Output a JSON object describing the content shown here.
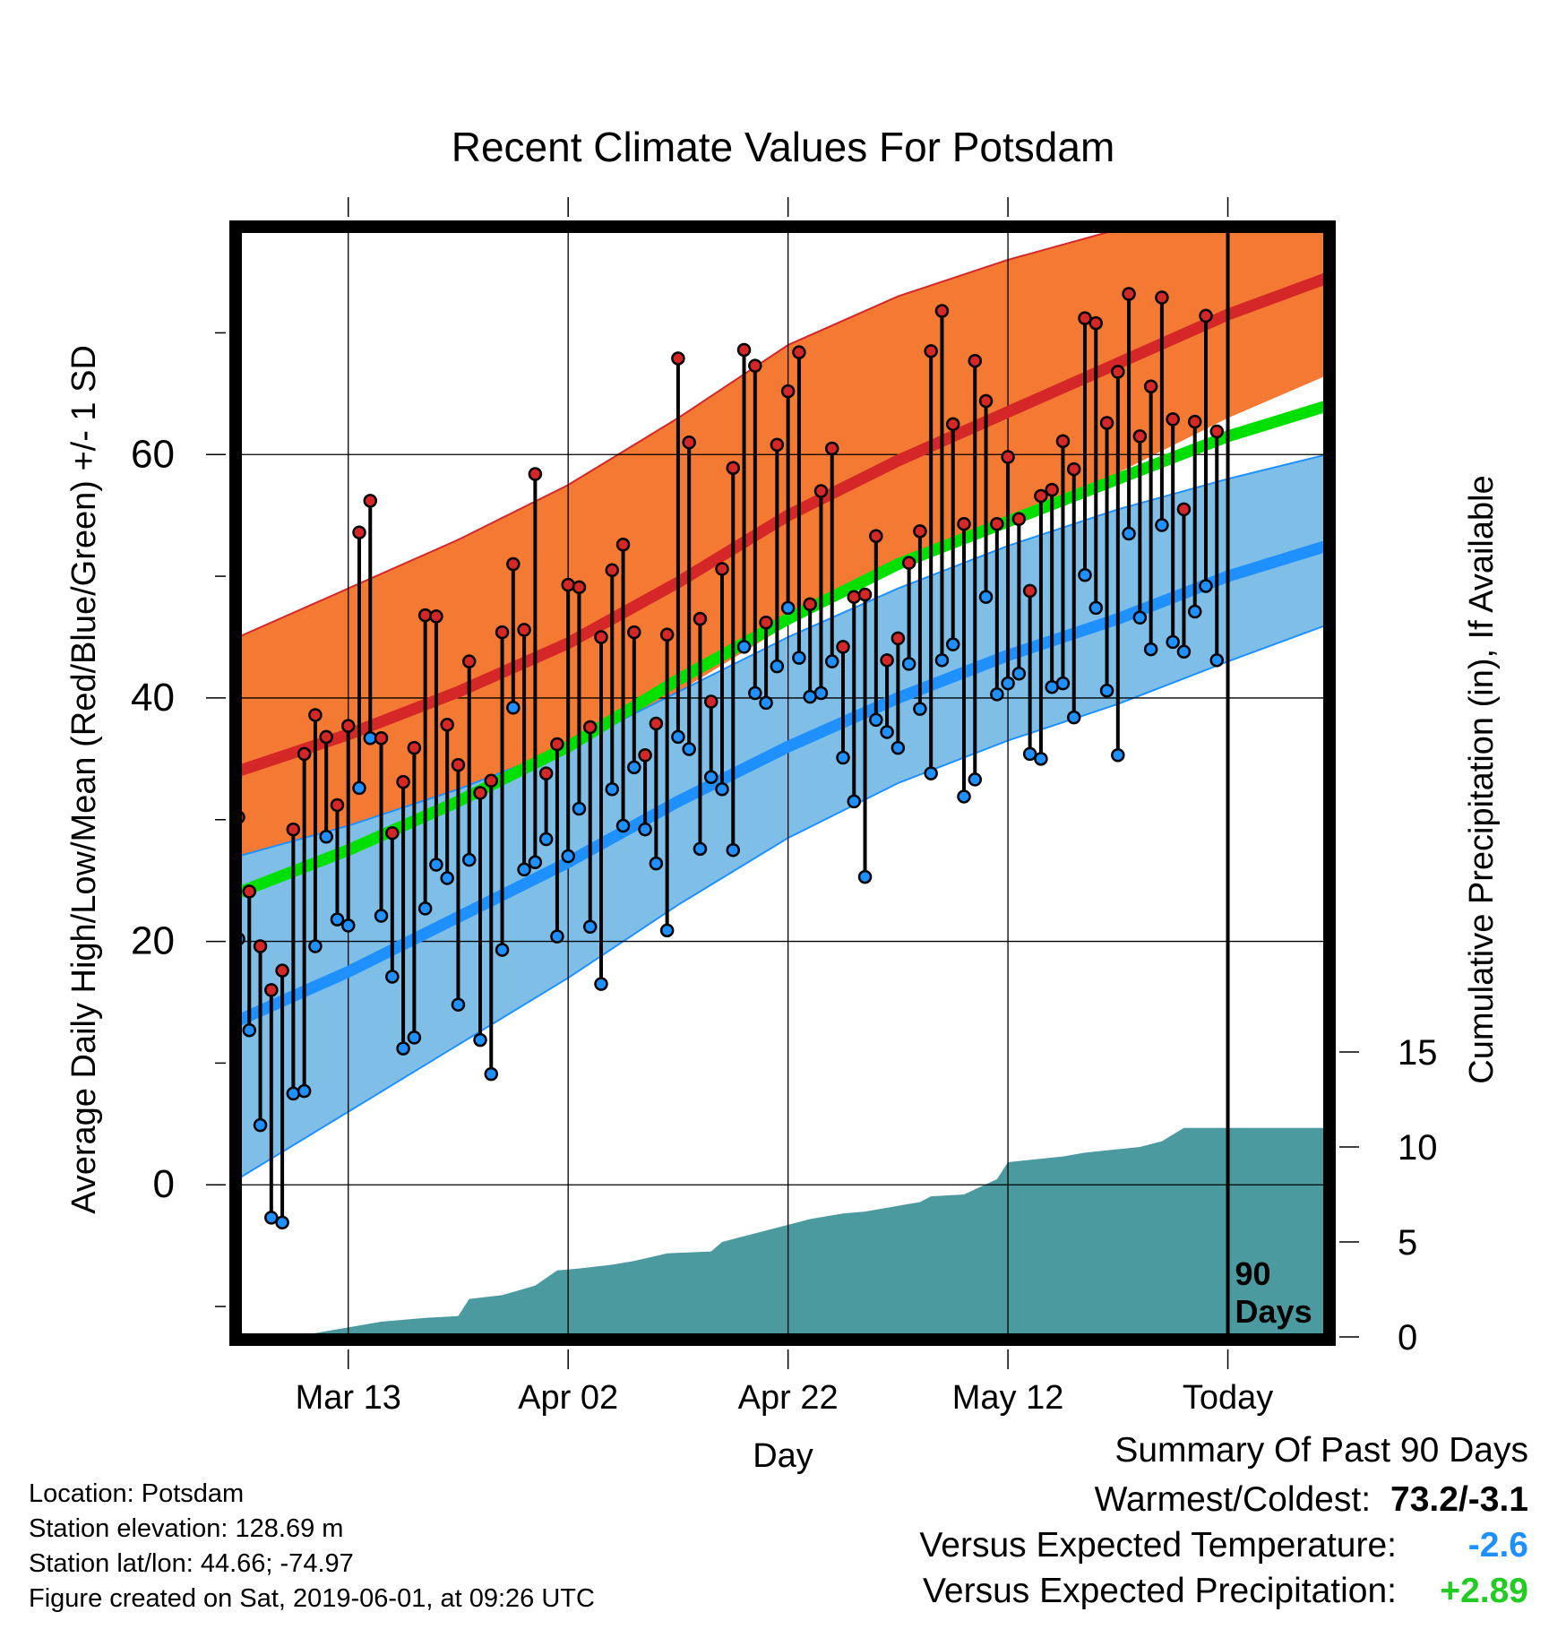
{
  "chart_data": {
    "type": "line",
    "title": "Recent Climate Values For Potsdam",
    "xlabel": "Day",
    "ylabel": "Average Daily High/Low/Mean (Red/Blue/Green) +/- 1 SD",
    "y2label": "Cumulative Precipitation (in), If Available",
    "x_ticks": [
      "Mar 13",
      "Apr 02",
      "Apr 22",
      "May 12",
      "Today"
    ],
    "y_ticks": [
      0,
      20,
      40,
      60
    ],
    "y2_ticks": [
      0,
      5,
      10,
      15
    ],
    "ylim": [
      -12.5,
      78.5
    ],
    "y2lim": [
      0,
      58.3
    ],
    "xlim_days_from_today": [
      -90,
      9
    ],
    "today_marker": {
      "label_line1": "90",
      "label_line2": "Days"
    },
    "grid": true,
    "series": [
      {
        "name": "Normal high",
        "color": "#d62728",
        "x": [
          -90,
          -80,
          -70,
          -60,
          -50,
          -40,
          -30,
          -20,
          -10,
          0,
          9
        ],
        "y": [
          34,
          37,
          40.5,
          44.5,
          49.5,
          55,
          59.5,
          63.5,
          67.5,
          71.5,
          74.5
        ]
      },
      {
        "name": "Normal mean",
        "color": "#00e000",
        "x": [
          -90,
          -80,
          -70,
          -60,
          -50,
          -40,
          -30,
          -20,
          -10,
          0,
          9
        ],
        "y": [
          24,
          27.5,
          31.5,
          36,
          41.5,
          46.5,
          51,
          54.5,
          58,
          61.5,
          64
        ]
      },
      {
        "name": "Normal low",
        "color": "#1e90ff",
        "x": [
          -90,
          -80,
          -70,
          -60,
          -50,
          -40,
          -30,
          -20,
          -10,
          0,
          9
        ],
        "y": [
          13.5,
          17.5,
          22,
          26.5,
          31.5,
          36,
          40,
          43.5,
          46.5,
          50,
          52.5
        ]
      },
      {
        "name": "High +1 SD",
        "x": [
          -90,
          -80,
          -70,
          -60,
          -50,
          -40,
          -30,
          -20,
          -10,
          0,
          9
        ],
        "y": [
          45,
          49,
          53,
          57.5,
          63,
          69,
          73,
          76,
          78.5,
          80.5,
          82
        ]
      },
      {
        "name": "High -1 SD",
        "x": [
          -90,
          -80,
          -70,
          -60,
          -50,
          -40,
          -30,
          -20,
          -10,
          0,
          9
        ],
        "y": [
          26.5,
          29.5,
          32.5,
          36,
          40.5,
          46,
          51,
          55,
          58.5,
          63,
          66.5
        ]
      },
      {
        "name": "Low +1 SD",
        "x": [
          -90,
          -80,
          -70,
          -60,
          -50,
          -40,
          -30,
          -20,
          -10,
          0,
          9
        ],
        "y": [
          27,
          29.5,
          32.5,
          36,
          40.5,
          45,
          49,
          52.5,
          55.5,
          58,
          60
        ]
      },
      {
        "name": "Low -1 SD",
        "x": [
          -90,
          -80,
          -70,
          -60,
          -50,
          -40,
          -30,
          -20,
          -10,
          0,
          9
        ],
        "y": [
          0.5,
          6,
          11.5,
          17,
          23,
          28.5,
          33,
          36.5,
          39.5,
          43,
          46
        ]
      }
    ],
    "daily_high_low": {
      "day_offsets": [
        -90,
        -89,
        -88,
        -87,
        -86,
        -85,
        -84,
        -83,
        -82,
        -81,
        -80,
        -79,
        -78,
        -77,
        -76,
        -75,
        -74,
        -73,
        -72,
        -71,
        -70,
        -69,
        -68,
        -67,
        -66,
        -65,
        -64,
        -63,
        -62,
        -61,
        -60,
        -59,
        -58,
        -57,
        -56,
        -55,
        -54,
        -53,
        -52,
        -51,
        -50,
        -49,
        -48,
        -47,
        -46,
        -45,
        -44,
        -43,
        -42,
        -41,
        -40,
        -39,
        -38,
        -37,
        -36,
        -35,
        -34,
        -33,
        -32,
        -31,
        -30,
        -29,
        -28,
        -27,
        -26,
        -25,
        -24,
        -23,
        -22,
        -21,
        -20,
        -19,
        -18,
        -17,
        -16,
        -15,
        -14,
        -13,
        -12,
        -11,
        -10,
        -9,
        -8,
        -7,
        -6,
        -5,
        -4,
        -3,
        -2,
        -1
      ],
      "highs": [
        30.2,
        24.1,
        19.6,
        16,
        17.6,
        29.2,
        35.4,
        38.6,
        36.8,
        31.2,
        37.7,
        53.6,
        56.2,
        36.7,
        28.9,
        33.1,
        35.9,
        46.8,
        46.7,
        37.8,
        34.5,
        43,
        32.2,
        33.2,
        45.4,
        51,
        45.6,
        58.4,
        33.8,
        36.2,
        49.3,
        49.1,
        37.6,
        45,
        50.5,
        52.6,
        45.4,
        35.3,
        37.9,
        45.2,
        67.9,
        61,
        46.5,
        39.7,
        50.6,
        58.9,
        68.6,
        67.3,
        46.2,
        60.8,
        65.2,
        68.4,
        47.7,
        57,
        60.5,
        44.2,
        48.3,
        48.5,
        53.3,
        43.1,
        44.9,
        51.1,
        53.7,
        68.5,
        71.8,
        62.5,
        54.3,
        67.7,
        64.4,
        54.3,
        59.8,
        54.7,
        48.8,
        56.6,
        57.1,
        61.1,
        58.8,
        71.2,
        70.8,
        62.6,
        66.8,
        73.2,
        61.5,
        65.6,
        72.9,
        62.9,
        55.5,
        62.7,
        71.4,
        61.9
      ],
      "lows": [
        20.2,
        12.7,
        4.9,
        -2.7,
        -3.1,
        7.5,
        7.7,
        19.6,
        28.6,
        21.8,
        21.3,
        32.6,
        36.7,
        22.1,
        17.1,
        11.2,
        12.1,
        22.7,
        26.3,
        25.2,
        14.8,
        26.7,
        11.9,
        9.1,
        19.3,
        39.2,
        25.9,
        26.5,
        28.4,
        20.4,
        27,
        30.9,
        21.2,
        16.5,
        32.5,
        29.5,
        34.3,
        29.2,
        26.4,
        20.9,
        36.8,
        35.8,
        27.6,
        33.5,
        32.5,
        27.5,
        44.2,
        40.4,
        39.6,
        42.6,
        47.4,
        43.3,
        40.1,
        40.4,
        43,
        35.1,
        31.5,
        25.3,
        38.2,
        37.2,
        35.9,
        42.8,
        39.1,
        33.8,
        43.1,
        44.4,
        31.9,
        33.3,
        48.3,
        40.3,
        41.2,
        42,
        35.4,
        35,
        40.9,
        41.2,
        38.4,
        50.1,
        47.4,
        40.6,
        35.3,
        53.5,
        46.6,
        44,
        54.2,
        44.6,
        43.8,
        47.1,
        49.2,
        43.1
      ]
    },
    "precipitation": {
      "day_offsets": [
        -90,
        -85,
        -80,
        -77,
        -73,
        -70,
        -69,
        -66,
        -63,
        -61,
        -59,
        -56,
        -54,
        -51,
        -47,
        -46,
        -44,
        -40,
        -38,
        -35,
        -33,
        -31,
        -28,
        -27,
        -24,
        -21,
        -20,
        -15,
        -13,
        -8,
        -6,
        -4,
        -3,
        0,
        9
      ],
      "cumulative": [
        0,
        0,
        0.5,
        0.8,
        1,
        1.1,
        2,
        2.2,
        2.7,
        3.5,
        3.6,
        3.8,
        4,
        4.4,
        4.5,
        5,
        5.3,
        5.9,
        6.2,
        6.5,
        6.6,
        6.8,
        7.1,
        7.4,
        7.5,
        8.3,
        9.2,
        9.5,
        9.7,
        10,
        10.3,
        11,
        11,
        11,
        11
      ]
    }
  },
  "info": {
    "location": "Location: Potsdam",
    "elevation": "Station elevation: 128.69 m",
    "latlon": "Station lat/lon: 44.66; -74.97",
    "created": "Figure created on Sat, 2019-06-01, at 09:26 UTC"
  },
  "summary": {
    "title": "Summary Of Past 90 Days",
    "warmest_coldest_label": "Warmest/Coldest:",
    "warmest_coldest_value": "73.2/-3.1",
    "temp_label": "Versus Expected Temperature:",
    "temp_value": "-2.6",
    "temp_color": "#1e90ff",
    "precip_label": "Versus Expected Precipitation:",
    "precip_value": "+2.89",
    "precip_color": "#22cc22"
  }
}
